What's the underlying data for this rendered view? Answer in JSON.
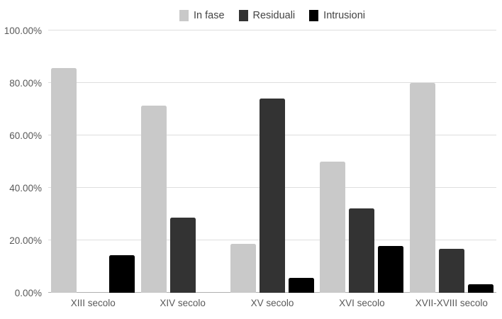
{
  "chart_data": {
    "type": "bar",
    "title": "",
    "categories": [
      "XIII secolo",
      "XIV secolo",
      "XV secolo",
      "XVI secolo",
      "XVII-XVIII secolo"
    ],
    "series": [
      {
        "name": "In fase",
        "color": "#c9c9c9",
        "values": [
          85.71,
          71.43,
          18.52,
          50.0,
          80.0
        ]
      },
      {
        "name": "Residuali",
        "color": "#333333",
        "values": [
          0.0,
          28.57,
          74.07,
          32.14,
          16.67
        ]
      },
      {
        "name": "Intrusioni",
        "color": "#000000",
        "values": [
          14.29,
          0.0,
          5.56,
          17.86,
          3.33
        ]
      }
    ],
    "y_axis": {
      "min": 0,
      "max": 100,
      "ticks": [
        {
          "value": 0,
          "label": "0.00%"
        },
        {
          "value": 20,
          "label": "20.00%"
        },
        {
          "value": 40,
          "label": "40.00%"
        },
        {
          "value": 60,
          "label": "60.00%"
        },
        {
          "value": 80,
          "label": "80.00%"
        },
        {
          "value": 100,
          "label": "100.00%"
        }
      ]
    },
    "grid": true,
    "legend_position": "top",
    "xlabel": "",
    "ylabel": ""
  },
  "colors": {
    "background": "#ffffff",
    "gridline": "#dedede",
    "axis_line": "#b0b0b0",
    "tick_text": "#595959",
    "legend_text": "#444444"
  }
}
